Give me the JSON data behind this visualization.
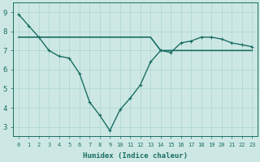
{
  "xlabel": "Humidex (Indice chaleur)",
  "background_color": "#cde8e4",
  "line_color": "#1a6e64",
  "xlim_min": -0.5,
  "xlim_max": 23.5,
  "ylim_min": 2.5,
  "ylim_max": 9.5,
  "yticks": [
    3,
    4,
    5,
    6,
    7,
    8,
    9
  ],
  "xticks": [
    0,
    1,
    2,
    3,
    4,
    5,
    6,
    7,
    8,
    9,
    10,
    11,
    12,
    13,
    14,
    15,
    16,
    17,
    18,
    19,
    20,
    21,
    22,
    23
  ],
  "curve_x": [
    0,
    1,
    2,
    3,
    4,
    5,
    6,
    7,
    8,
    9,
    10,
    11,
    12,
    13,
    14,
    15,
    16,
    17,
    18,
    19,
    20,
    21,
    22,
    23
  ],
  "curve_y": [
    8.9,
    8.3,
    7.7,
    7.0,
    6.7,
    6.6,
    5.8,
    4.3,
    3.6,
    2.8,
    3.9,
    4.5,
    5.2,
    6.4,
    7.0,
    6.9,
    7.4,
    7.5,
    7.7,
    7.7,
    7.6,
    7.4,
    7.3,
    7.2
  ],
  "flat_x": [
    0,
    1,
    2,
    3,
    4,
    5,
    6,
    7,
    8,
    9,
    10,
    11,
    12,
    13,
    14,
    15,
    16,
    17,
    18,
    19,
    20,
    21,
    22,
    23
  ],
  "flat_y": [
    7.7,
    7.7,
    7.7,
    7.7,
    7.7,
    7.7,
    7.7,
    7.7,
    7.7,
    7.7,
    7.7,
    7.7,
    7.7,
    7.7,
    7.0,
    7.0,
    7.0,
    7.0,
    7.0,
    7.0,
    7.0,
    7.0,
    7.0,
    7.0
  ],
  "grid_color": "#aad4ce",
  "xlabel_fontsize": 6.5,
  "xtick_fontsize": 5.0,
  "ytick_fontsize": 6.5
}
